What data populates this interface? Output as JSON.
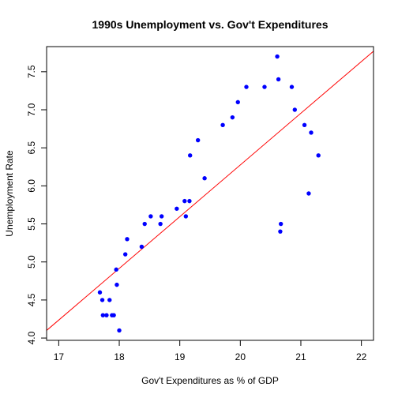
{
  "chart_data": {
    "type": "scatter",
    "title": "1990s Unemployment vs. Gov't Expenditures",
    "xlabel": "Gov't Expenditures as % of GDP",
    "ylabel": "Unemployment Rate",
    "xlim": [
      16.8,
      22.2
    ],
    "ylim": [
      3.97,
      7.83
    ],
    "xticks": [
      17,
      18,
      19,
      20,
      21,
      22
    ],
    "yticks": [
      4.0,
      4.5,
      5.0,
      5.5,
      6.0,
      6.5,
      7.0,
      7.5
    ],
    "ytick_labels": [
      "4.0",
      "4.5",
      "5.0",
      "5.5",
      "6.0",
      "6.5",
      "7.0",
      "7.5"
    ],
    "grid": false,
    "point_color": "#0000ff",
    "line_color": "#ff0000",
    "regression_line": {
      "x": [
        16.8,
        22.2
      ],
      "y": [
        4.1,
        7.77
      ]
    },
    "points": [
      {
        "x": 17.68,
        "y": 4.6
      },
      {
        "x": 17.72,
        "y": 4.5
      },
      {
        "x": 17.73,
        "y": 4.3
      },
      {
        "x": 17.79,
        "y": 4.3
      },
      {
        "x": 17.84,
        "y": 4.5
      },
      {
        "x": 17.88,
        "y": 4.3
      },
      {
        "x": 17.91,
        "y": 4.3
      },
      {
        "x": 17.95,
        "y": 4.9
      },
      {
        "x": 17.96,
        "y": 4.7
      },
      {
        "x": 18.0,
        "y": 4.1
      },
      {
        "x": 18.1,
        "y": 5.1
      },
      {
        "x": 18.13,
        "y": 5.3
      },
      {
        "x": 18.37,
        "y": 5.2
      },
      {
        "x": 18.42,
        "y": 5.5
      },
      {
        "x": 18.52,
        "y": 5.6
      },
      {
        "x": 18.68,
        "y": 5.5
      },
      {
        "x": 18.7,
        "y": 5.6
      },
      {
        "x": 18.95,
        "y": 5.7
      },
      {
        "x": 19.08,
        "y": 5.8
      },
      {
        "x": 19.1,
        "y": 5.6
      },
      {
        "x": 19.16,
        "y": 5.8
      },
      {
        "x": 19.17,
        "y": 6.4
      },
      {
        "x": 19.3,
        "y": 6.6
      },
      {
        "x": 19.41,
        "y": 6.1
      },
      {
        "x": 19.71,
        "y": 6.8
      },
      {
        "x": 19.87,
        "y": 6.9
      },
      {
        "x": 19.96,
        "y": 7.1
      },
      {
        "x": 20.1,
        "y": 7.3
      },
      {
        "x": 20.4,
        "y": 7.3
      },
      {
        "x": 20.61,
        "y": 7.7
      },
      {
        "x": 20.63,
        "y": 7.4
      },
      {
        "x": 20.66,
        "y": 5.4
      },
      {
        "x": 20.67,
        "y": 5.5
      },
      {
        "x": 20.85,
        "y": 7.3
      },
      {
        "x": 20.9,
        "y": 7.0
      },
      {
        "x": 21.06,
        "y": 6.8
      },
      {
        "x": 21.13,
        "y": 5.9
      },
      {
        "x": 21.17,
        "y": 6.7
      },
      {
        "x": 21.29,
        "y": 6.4
      }
    ]
  }
}
